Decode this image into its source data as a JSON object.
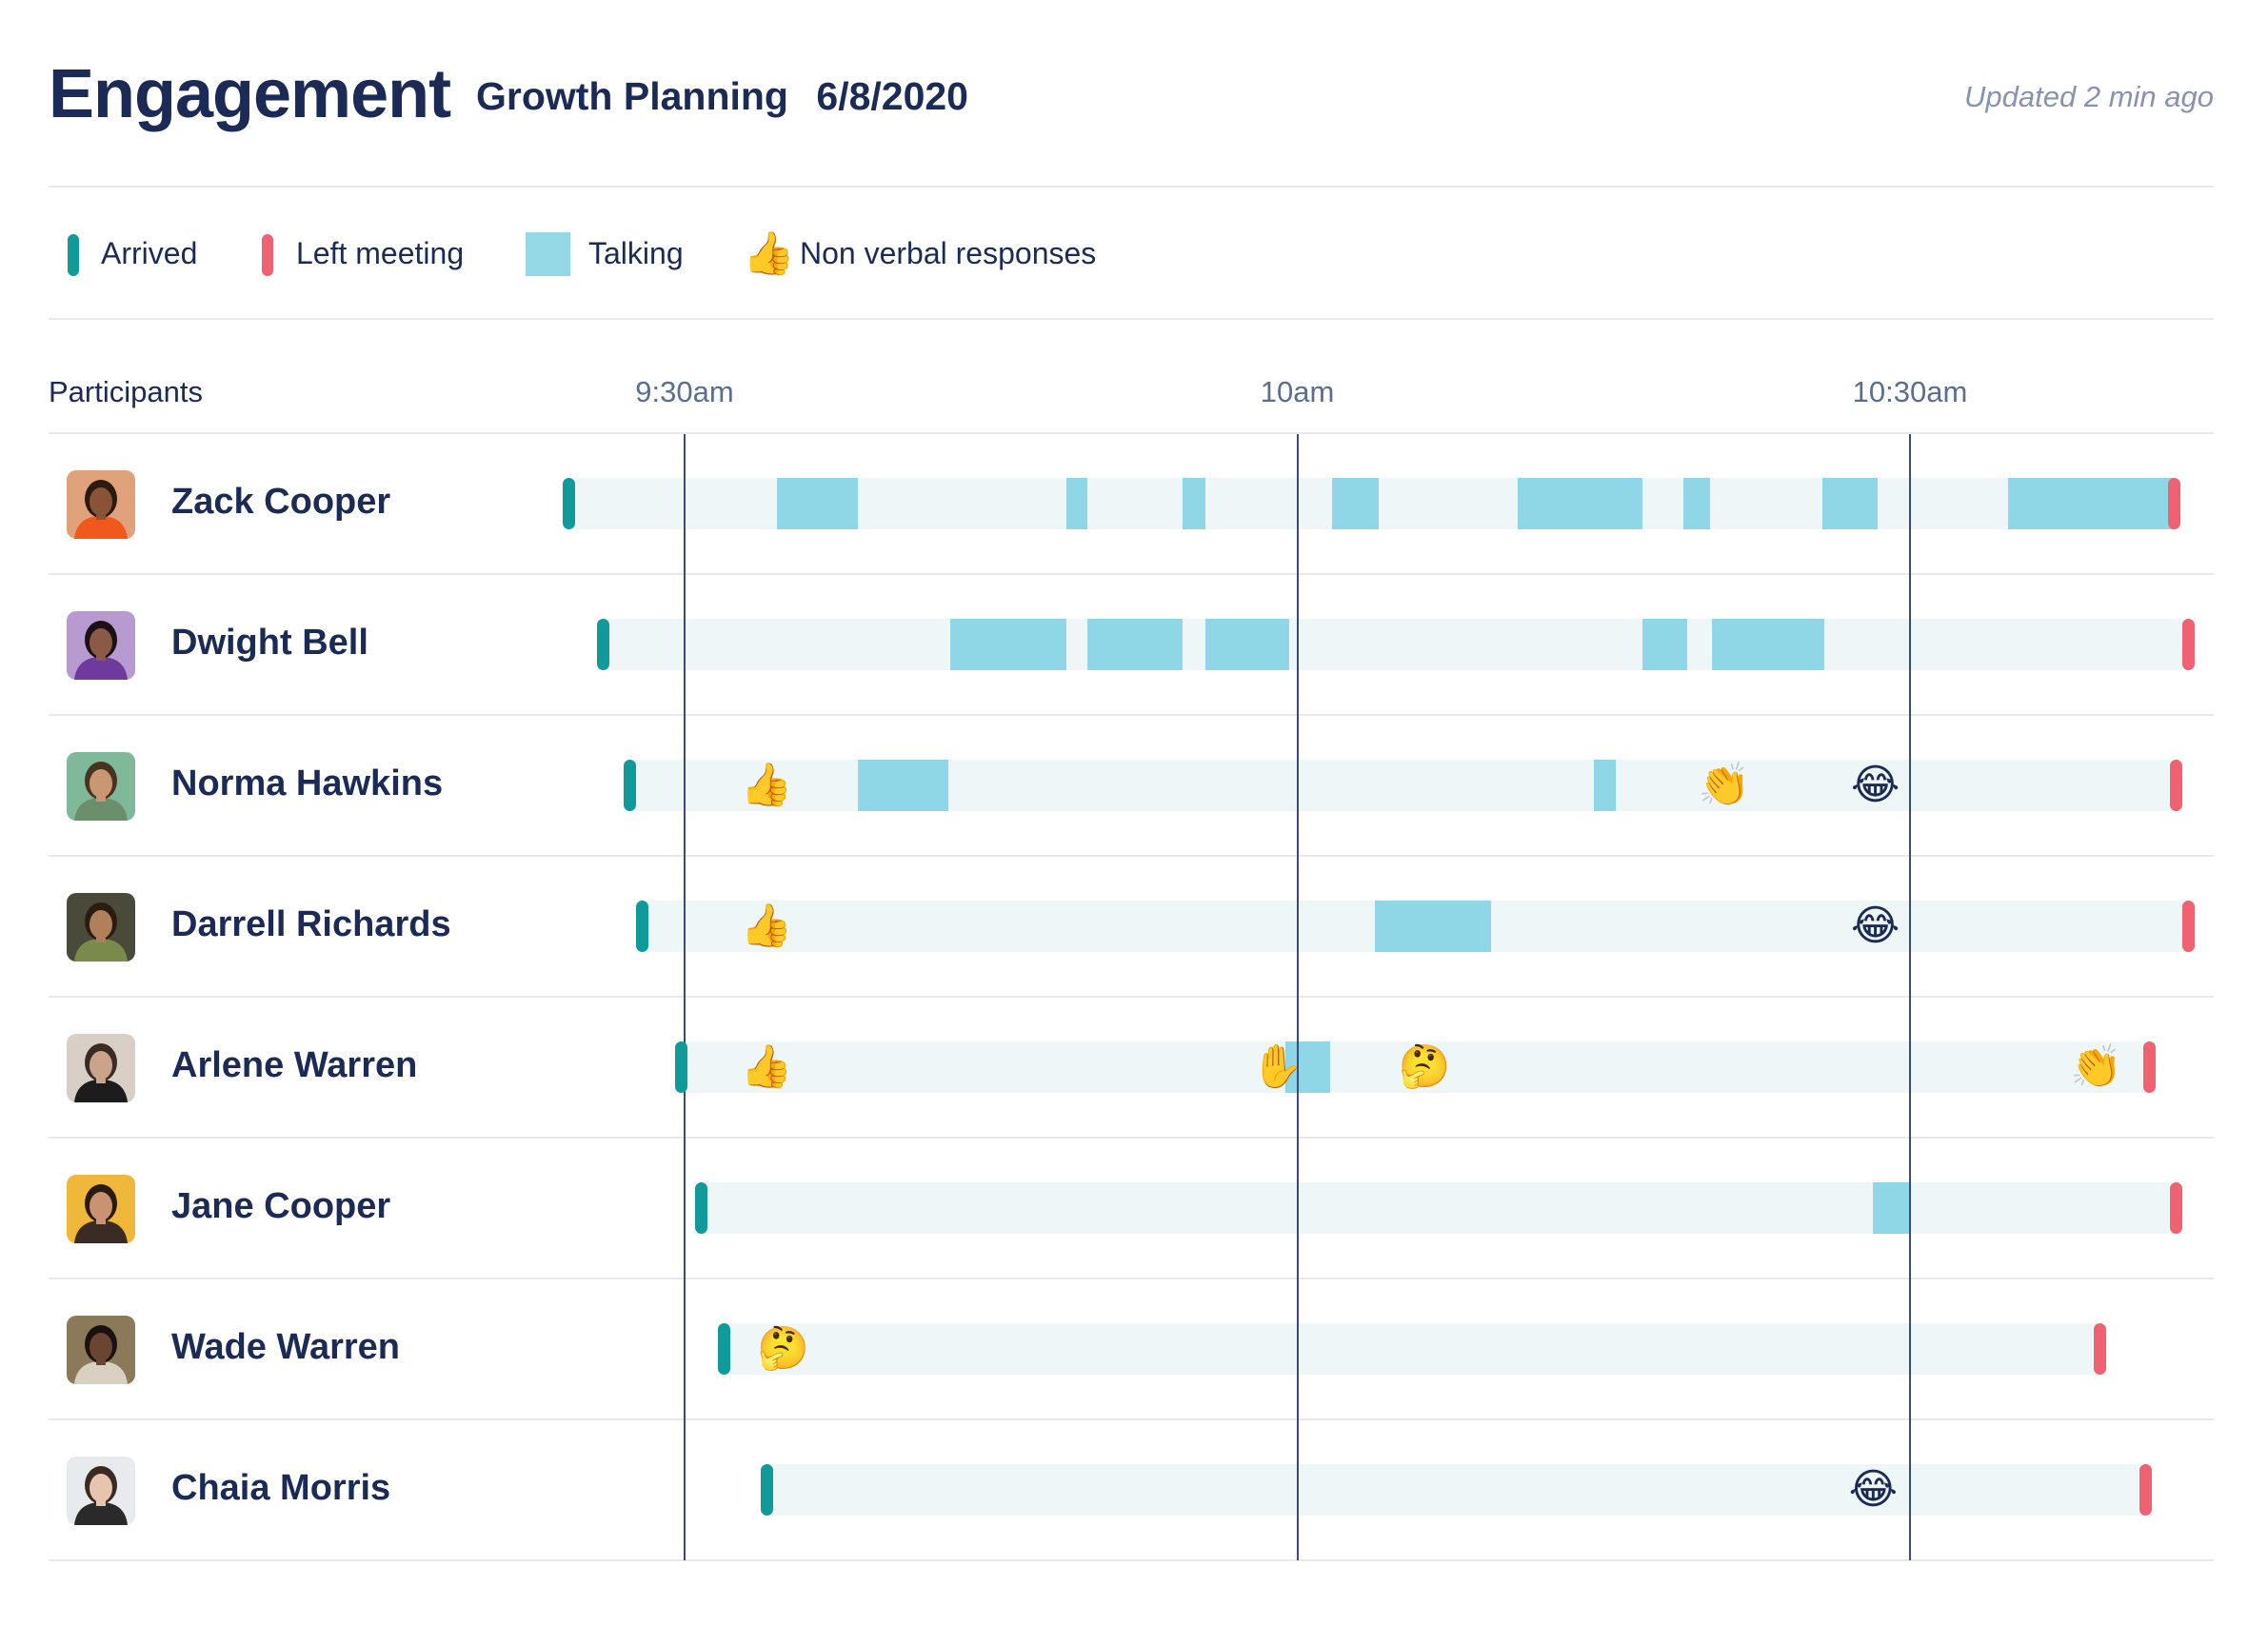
{
  "header": {
    "title": "Engagement",
    "meeting_name": "Growth Planning",
    "meeting_date": "6/8/2020",
    "updated": "Updated 2 min ago"
  },
  "legend": {
    "arrived": "Arrived",
    "left": "Left meeting",
    "talking": "Talking",
    "nonverbal": "Non verbal responses",
    "nonverbal_emoji": "👍"
  },
  "colors": {
    "arrived": "#109a9a",
    "left": "#ee6272",
    "talking": "#8fd6e6",
    "track": "#eef6f8",
    "text": "#1c2b55"
  },
  "chart_data": {
    "type": "timeline",
    "row_header": "Participants",
    "time_unit": "minutes since 9:00am",
    "x_range": [
      16,
      94
    ],
    "ticks": [
      {
        "label": "9:30am",
        "t": 30
      },
      {
        "label": "10am",
        "t": 60
      },
      {
        "label": "10:30am",
        "t": 90
      }
    ],
    "participants": [
      {
        "name": "Zack Cooper",
        "avatar": {
          "bg": "#e0a27a",
          "skin": "#8a5236",
          "hair": "#2a1a10",
          "shirt": "#f0581c"
        },
        "arrived": 24.3,
        "left": 102.9,
        "talking": [
          [
            34.5,
            38.5
          ],
          [
            48.7,
            49.7
          ],
          [
            54.4,
            55.5
          ],
          [
            61.7,
            64.0
          ],
          [
            70.8,
            76.9
          ],
          [
            78.9,
            80.2
          ],
          [
            85.7,
            88.4
          ],
          [
            94.8,
            102.9
          ]
        ],
        "reactions": []
      },
      {
        "name": "Dwight Bell",
        "avatar": {
          "bg": "#b79ad0",
          "skin": "#8a5a46",
          "hair": "#1a1016",
          "shirt": "#6e3a9e"
        },
        "arrived": 26.0,
        "left": 103.6,
        "talking": [
          [
            43.0,
            48.7
          ],
          [
            49.7,
            54.4
          ],
          [
            55.5,
            59.6
          ],
          [
            76.9,
            79.1
          ],
          [
            80.3,
            85.8
          ]
        ],
        "reactions": []
      },
      {
        "name": "Norma Hawkins",
        "avatar": {
          "bg": "#7fb99a",
          "skin": "#c99873",
          "hair": "#4a3222",
          "shirt": "#6a8f6a"
        },
        "arrived": 27.3,
        "left": 103.0,
        "talking": [
          [
            38.5,
            42.9
          ],
          [
            74.5,
            75.6
          ]
        ],
        "reactions": [
          {
            "t": 34.0,
            "emoji": "👍"
          },
          {
            "t": 80.9,
            "emoji": "👏"
          },
          {
            "t": 88.3,
            "emoji": "😂"
          }
        ]
      },
      {
        "name": "Darrell Richards",
        "avatar": {
          "bg": "#4a4a3a",
          "skin": "#b0805c",
          "hair": "#2a1c12",
          "shirt": "#7a8a4a"
        },
        "arrived": 27.9,
        "left": 103.6,
        "talking": [
          [
            63.8,
            69.5
          ]
        ],
        "reactions": [
          {
            "t": 34.0,
            "emoji": "👍"
          },
          {
            "t": 88.3,
            "emoji": "😂"
          }
        ]
      },
      {
        "name": "Arlene Warren",
        "avatar": {
          "bg": "#d8cfc6",
          "skin": "#c9a48a",
          "hair": "#3a2c24",
          "shirt": "#1c1c1c"
        },
        "arrived": 29.8,
        "left": 101.7,
        "talking": [
          [
            59.4,
            61.6
          ]
        ],
        "reactions": [
          {
            "t": 34.0,
            "emoji": "👍"
          },
          {
            "t": 59.0,
            "emoji": "✋"
          },
          {
            "t": 66.2,
            "emoji": "🤔"
          },
          {
            "t": 99.1,
            "emoji": "👏"
          }
        ]
      },
      {
        "name": "Jane Cooper",
        "avatar": {
          "bg": "#f0b83a",
          "skin": "#c99270",
          "hair": "#2a1a12",
          "shirt": "#3a2c24"
        },
        "arrived": 30.8,
        "left": 103.0,
        "talking": [
          [
            88.2,
            90.0
          ]
        ],
        "reactions": []
      },
      {
        "name": "Wade Warren",
        "avatar": {
          "bg": "#8a7a5a",
          "skin": "#6a4632",
          "hair": "#1a1210",
          "shirt": "#d8d0c0"
        },
        "arrived": 31.9,
        "left": 99.3,
        "talking": [],
        "reactions": [
          {
            "t": 34.8,
            "emoji": "🤔"
          }
        ]
      },
      {
        "name": "Chaia Morris",
        "avatar": {
          "bg": "#e8ebee",
          "skin": "#e6c4ae",
          "hair": "#3a2a20",
          "shirt": "#2a2a2a"
        },
        "arrived": 34.0,
        "left": 101.5,
        "talking": [],
        "reactions": [
          {
            "t": 88.2,
            "emoji": "😂"
          }
        ]
      }
    ]
  }
}
